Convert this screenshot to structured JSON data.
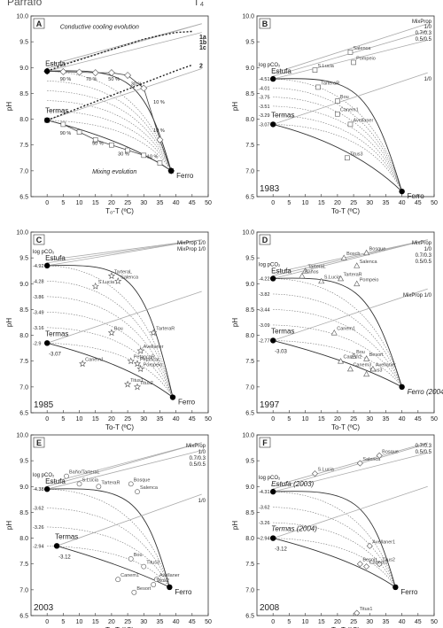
{
  "header_fragment": {
    "left": "Parrafo",
    "right": "T₄"
  },
  "chart_data": [
    {
      "panel": "A",
      "type": "line",
      "ylabel": "pH",
      "xlabel": "T₀-T (ºC)",
      "xlim": [
        -5,
        50
      ],
      "ylim": [
        6.5,
        10.0
      ],
      "xticks": [
        0,
        5,
        10,
        15,
        20,
        25,
        30,
        35,
        40,
        45,
        50
      ],
      "yticks": [
        6.5,
        7.0,
        7.5,
        8.0,
        8.5,
        9.0,
        9.5,
        10.0
      ],
      "end_members": [
        {
          "name": "Estufa",
          "x": 0,
          "y": 8.93
        },
        {
          "name": "Termas",
          "x": 0,
          "y": 7.98
        },
        {
          "name": "Ferro",
          "x": 38.5,
          "y": 7.0
        }
      ],
      "annotations": [
        "Conductive cooling evolution",
        "Mixing evolution"
      ],
      "cooling_labels": [
        "1a",
        "1b",
        "1c",
        "2"
      ],
      "percent_labels": [
        "90 %",
        "70 %",
        "50 %",
        "30 %",
        "10 %",
        "90 %",
        "50 %",
        "30 %",
        "10 %",
        "10 %"
      ],
      "series": [
        {
          "x": [
            0,
            5,
            10,
            15,
            20,
            25,
            30,
            35,
            38.5
          ],
          "y": [
            8.93,
            8.92,
            8.91,
            8.9,
            8.9,
            8.85,
            8.6,
            7.6,
            7.0
          ]
        },
        {
          "x": [
            0,
            5,
            10,
            15,
            20,
            25,
            30,
            35,
            38.5
          ],
          "y": [
            7.98,
            7.9,
            7.75,
            7.6,
            7.5,
            7.4,
            7.3,
            7.15,
            7.0
          ]
        },
        {
          "x": [
            0,
            5,
            10,
            15,
            20,
            25,
            30,
            35,
            40,
            45
          ],
          "y": [
            7.98,
            8.1,
            8.22,
            8.34,
            8.46,
            8.58,
            8.7,
            8.82,
            8.94,
            9.05
          ]
        },
        {
          "x": [
            0,
            5,
            10,
            15,
            20,
            25,
            30,
            35,
            40,
            45
          ],
          "y": [
            8.93,
            9.05,
            9.15,
            9.25,
            9.35,
            9.45,
            9.55,
            9.62,
            9.68,
            9.7
          ]
        }
      ]
    },
    {
      "panel": "B",
      "type": "line",
      "year": "1983",
      "ylabel": "pH",
      "xlabel": "To-T (ºC)",
      "xlim": [
        -5,
        50
      ],
      "ylim": [
        6.5,
        10.0
      ],
      "xticks": [
        0,
        5,
        10,
        15,
        20,
        25,
        30,
        35,
        40,
        45,
        50
      ],
      "yticks": [
        6.5,
        7.0,
        7.5,
        8.0,
        8.5,
        9.0,
        9.5,
        10.0
      ],
      "legend_title": "MixProp",
      "mixprop": [
        "1/0",
        "0.7/0.3",
        "0.5/0.5",
        "1/0"
      ],
      "pco2_label": "log pCO₂",
      "pco2_values": [
        "-4.51",
        "-4.01",
        "-3.75",
        "-3.51",
        "-3.29",
        "-3.07"
      ],
      "end_members": [
        {
          "name": "Estufa",
          "x": 0,
          "y": 8.78
        },
        {
          "name": "Termas",
          "x": 0,
          "y": 7.9
        },
        {
          "name": "Ferro",
          "x": 40,
          "y": 6.6
        }
      ],
      "samples": [
        {
          "name": "Salenca",
          "x": 24,
          "y": 9.3
        },
        {
          "name": "S.Lucia",
          "x": 13,
          "y": 8.95
        },
        {
          "name": "Pompeio",
          "x": 25,
          "y": 9.1
        },
        {
          "name": "TarteraR",
          "x": 14,
          "y": 8.62
        },
        {
          "name": "Bou",
          "x": 20,
          "y": 8.35
        },
        {
          "name": "Canem1",
          "x": 20,
          "y": 8.1
        },
        {
          "name": "Avellaner",
          "x": 24,
          "y": 7.9
        },
        {
          "name": "Titus3",
          "x": 23,
          "y": 7.25
        }
      ]
    },
    {
      "panel": "C",
      "type": "line",
      "year": "1985",
      "ylabel": "pH",
      "xlabel": "To-T (ºC)",
      "xlim": [
        -5,
        50
      ],
      "ylim": [
        6.5,
        10.0
      ],
      "xticks": [
        0,
        5,
        10,
        15,
        20,
        25,
        30,
        35,
        40,
        45,
        50
      ],
      "yticks": [
        6.5,
        7.0,
        7.5,
        8.0,
        8.5,
        9.0,
        9.5,
        10.0
      ],
      "mixprop": [
        "MixProp 1/0",
        "MixProp 1/0"
      ],
      "pco2_label": "log pCO₂",
      "pco2_values": [
        "-4.92",
        "-4.28",
        "-3.86",
        "-3.49",
        "-3.16",
        "-2.9"
      ],
      "termas_pco2": "-3.07",
      "end_members": [
        {
          "name": "Estufa",
          "x": 0,
          "y": 9.35
        },
        {
          "name": "Termas",
          "x": 0,
          "y": 7.85
        },
        {
          "name": "Ferro",
          "x": 39,
          "y": 6.8
        }
      ],
      "samples": [
        {
          "name": "TarteraL",
          "x": 20,
          "y": 9.15
        },
        {
          "name": "Salenca",
          "x": 22,
          "y": 9.05
        },
        {
          "name": "S.Lucia",
          "x": 15,
          "y": 8.95
        },
        {
          "name": "TarteraR",
          "x": 33,
          "y": 8.05
        },
        {
          "name": "Bou",
          "x": 20,
          "y": 8.05
        },
        {
          "name": "Avellaner",
          "x": 29,
          "y": 7.7
        },
        {
          "name": "PetancaR",
          "x": 26,
          "y": 7.5
        },
        {
          "name": "PetancaL",
          "x": 28,
          "y": 7.45
        },
        {
          "name": "Canem1",
          "x": 11,
          "y": 7.45
        },
        {
          "name": "Pompeio",
          "x": 29,
          "y": 7.35
        },
        {
          "name": "Titus1",
          "x": 25,
          "y": 7.05
        },
        {
          "name": "Titus2",
          "x": 28,
          "y": 7.0
        }
      ]
    },
    {
      "panel": "D",
      "type": "line",
      "year": "1997",
      "ylabel": "pH",
      "xlabel": "To-T (ºC)",
      "xlim": [
        -5,
        50
      ],
      "ylim": [
        6.5,
        10.0
      ],
      "xticks": [
        0,
        5,
        10,
        15,
        20,
        25,
        30,
        35,
        40,
        45,
        50
      ],
      "yticks": [
        6.5,
        7.0,
        7.5,
        8.0,
        8.5,
        9.0,
        9.5,
        10.0
      ],
      "mixprop": [
        "MixProp",
        "1/0",
        "0.7/0.3",
        "0.5/0.5",
        "MixProp 1/0"
      ],
      "pco2_label": "log pCO₂",
      "pco2_values": [
        "-4.22",
        "-3.82",
        "-3.44",
        "-3.09",
        "-2.77"
      ],
      "termas_pco2": "-3.03",
      "end_members": [
        {
          "name": "Estufa",
          "x": 0,
          "y": 9.1
        },
        {
          "name": "Termas",
          "x": 0,
          "y": 7.9
        },
        {
          "name": "Ferro (2004)",
          "x": 40,
          "y": 7.0
        }
      ],
      "samples": [
        {
          "name": "Bosch",
          "x": 22,
          "y": 9.5
        },
        {
          "name": "Bosque",
          "x": 29,
          "y": 9.6
        },
        {
          "name": "Salenca",
          "x": 26,
          "y": 9.35
        },
        {
          "name": "TarteraL",
          "x": 10,
          "y": 9.25
        },
        {
          "name": "Baños",
          "x": 9,
          "y": 9.15
        },
        {
          "name": "S.Lucia",
          "x": 15,
          "y": 9.05
        },
        {
          "name": "TarteraR",
          "x": 21,
          "y": 9.1
        },
        {
          "name": "Pompeio",
          "x": 26,
          "y": 9.0
        },
        {
          "name": "Canem1",
          "x": 19,
          "y": 8.05
        },
        {
          "name": "Bou",
          "x": 25,
          "y": 7.6
        },
        {
          "name": "Besort",
          "x": 29,
          "y": 7.55
        },
        {
          "name": "Canem2",
          "x": 21,
          "y": 7.5
        },
        {
          "name": "Canem3",
          "x": 24,
          "y": 7.35
        },
        {
          "name": "Titus3",
          "x": 29,
          "y": 7.25
        },
        {
          "name": "Avellaner",
          "x": 31,
          "y": 7.35
        }
      ]
    },
    {
      "panel": "E",
      "type": "line",
      "year": "2003",
      "ylabel": "pH",
      "xlabel": "To-T (ºC)",
      "xlim": [
        -5,
        50
      ],
      "ylim": [
        6.5,
        10.0
      ],
      "xticks": [
        0,
        5,
        10,
        15,
        20,
        25,
        30,
        35,
        40,
        45,
        50
      ],
      "yticks": [
        6.5,
        7.0,
        7.5,
        8.0,
        8.5,
        9.0,
        9.5,
        10.0
      ],
      "mixprop": [
        "MixProp",
        "1/0",
        "0.7/0.3",
        "0.5/0.5",
        "1/0"
      ],
      "pco2_label": "log pCO₂",
      "pco2_values": [
        "-4.38",
        "-3.62",
        "-3.26",
        "-2.94"
      ],
      "termas_pco2": "-3.12",
      "end_members": [
        {
          "name": "Estufa",
          "x": 0,
          "y": 8.95
        },
        {
          "name": "Termas",
          "x": 3,
          "y": 7.85
        },
        {
          "name": "Ferro",
          "x": 38,
          "y": 7.05
        }
      ],
      "samples": [
        {
          "name": "Baño/TarteraL",
          "x": 6,
          "y": 9.2
        },
        {
          "name": "S.Lucia",
          "x": 10,
          "y": 9.05
        },
        {
          "name": "TarteraR",
          "x": 16,
          "y": 9.0
        },
        {
          "name": "Bosque",
          "x": 26,
          "y": 9.05
        },
        {
          "name": "Salenca",
          "x": 28,
          "y": 8.9
        },
        {
          "name": "Bou",
          "x": 26,
          "y": 7.6
        },
        {
          "name": "Titus3",
          "x": 30,
          "y": 7.45
        },
        {
          "name": "Canem1",
          "x": 22,
          "y": 7.2
        },
        {
          "name": "Avellaner",
          "x": 34,
          "y": 7.2
        },
        {
          "name": "Besort",
          "x": 27,
          "y": 6.95
        },
        {
          "name": "Titus2",
          "x": 33,
          "y": 7.1
        }
      ]
    },
    {
      "panel": "F",
      "type": "line",
      "year": "2008",
      "ylabel": "pH",
      "xlabel": "To-T (ºC)",
      "xlim": [
        -5,
        50
      ],
      "ylim": [
        6.5,
        10.0
      ],
      "xticks": [
        0,
        5,
        10,
        15,
        20,
        25,
        30,
        35,
        40,
        45,
        50
      ],
      "yticks": [
        6.5,
        7.0,
        7.5,
        8.0,
        8.5,
        9.0,
        9.5,
        10.0
      ],
      "mixprop": [
        "0.7/0.3",
        "0.5/0.5"
      ],
      "pco2_label": "log pCO₂",
      "pco2_values": [
        "-4.31",
        "-3.62",
        "-3.26",
        "-2.94"
      ],
      "termas_pco2": "-3.12",
      "end_members": [
        {
          "name": "Estufa (2003)",
          "x": 0,
          "y": 8.9
        },
        {
          "name": "Termas (2004)",
          "x": 0,
          "y": 8.0
        },
        {
          "name": "Ferro",
          "x": 38,
          "y": 7.05
        }
      ],
      "samples": [
        {
          "name": "Bosque",
          "x": 33,
          "y": 9.6
        },
        {
          "name": "Salenca",
          "x": 27,
          "y": 9.45
        },
        {
          "name": "S.Lucia",
          "x": 13,
          "y": 9.25
        },
        {
          "name": "Avellaner1",
          "x": 30,
          "y": 7.85
        },
        {
          "name": "Titus2",
          "x": 33,
          "y": 7.5
        },
        {
          "name": "Canem1",
          "x": 29,
          "y": 7.45
        },
        {
          "name": "Besort",
          "x": 27,
          "y": 7.5
        },
        {
          "name": "Titus1",
          "x": 26,
          "y": 6.55
        }
      ]
    }
  ]
}
